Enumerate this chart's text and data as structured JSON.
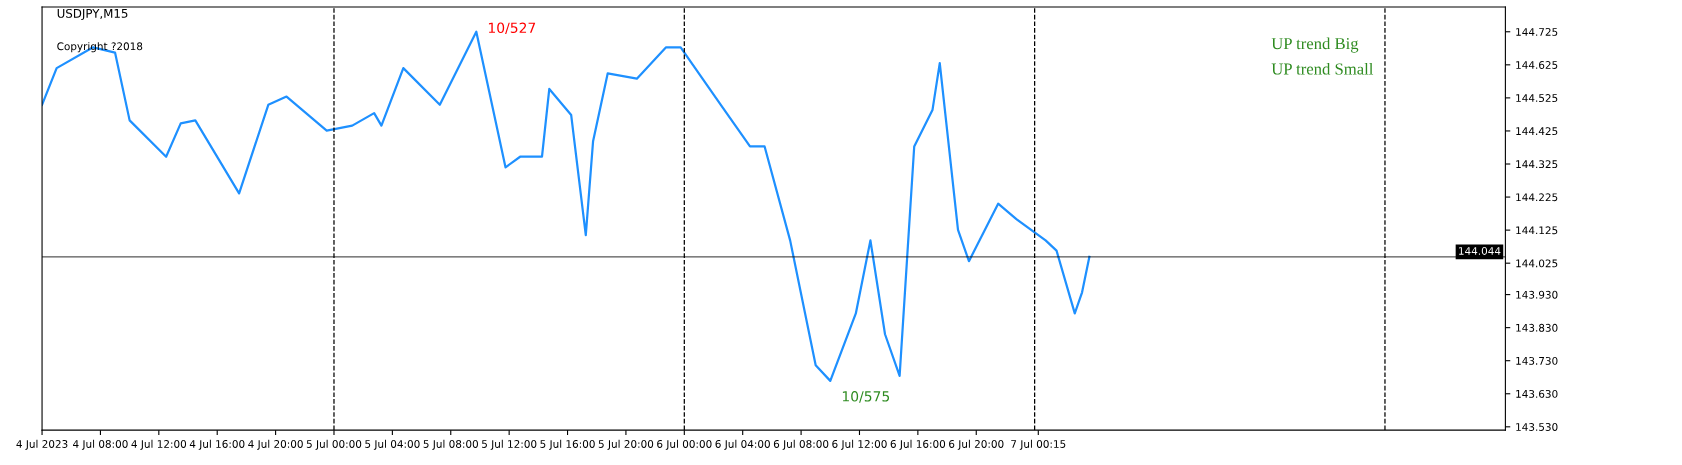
{
  "chart_data": {
    "type": "line",
    "title": "USDJPY,M15",
    "x": [
      "2023-07-04T04:00",
      "2023-07-04T05:00",
      "2023-07-04T07:30",
      "2023-07-04T09:00",
      "2023-07-04T10:00",
      "2023-07-04T12:30",
      "2023-07-04T13:30",
      "2023-07-04T14:30",
      "2023-07-04T17:30",
      "2023-07-04T19:30",
      "2023-07-04T20:45",
      "2023-07-04T23:30",
      "2023-07-05T01:15",
      "2023-07-05T02:45",
      "2023-07-05T03:15",
      "2023-07-05T04:45",
      "2023-07-05T07:15",
      "2023-07-05T09:45",
      "2023-07-05T11:45",
      "2023-07-05T12:45",
      "2023-07-05T14:15",
      "2023-07-05T14:45",
      "2023-07-05T16:15",
      "2023-07-05T17:15",
      "2023-07-05T17:45",
      "2023-07-05T18:45",
      "2023-07-05T20:45",
      "2023-07-05T22:45",
      "2023-07-05T23:45",
      "2023-07-06T02:30",
      "2023-07-06T04:30",
      "2023-07-06T05:30",
      "2023-07-06T07:15",
      "2023-07-06T09:00",
      "2023-07-06T10:00",
      "2023-07-06T11:45",
      "2023-07-06T12:45",
      "2023-07-06T13:45",
      "2023-07-06T14:45",
      "2023-07-06T15:45",
      "2023-07-06T17:00",
      "2023-07-06T17:30",
      "2023-07-06T18:45",
      "2023-07-06T19:30",
      "2023-07-06T21:30",
      "2023-07-06T22:45",
      "2023-07-07T00:45",
      "2023-07-07T01:30",
      "2023-07-07T02:45",
      "2023-07-07T03:15",
      "2023-07-07T03:45"
    ],
    "series": [
      {
        "color": "#1e90ff",
        "values": [
          144.504,
          144.615,
          144.678,
          144.662,
          144.457,
          144.347,
          144.448,
          144.457,
          144.236,
          144.504,
          144.529,
          144.426,
          144.441,
          144.479,
          144.441,
          144.615,
          144.504,
          144.725,
          144.315,
          144.347,
          144.347,
          144.552,
          144.473,
          144.11,
          144.394,
          144.599,
          144.583,
          144.678,
          144.678,
          144.504,
          144.378,
          144.378,
          144.094,
          143.716,
          143.669,
          143.873,
          144.094,
          143.81,
          143.684,
          144.378,
          144.488,
          144.63,
          144.126,
          144.031,
          144.205,
          144.158,
          144.094,
          144.063,
          143.873,
          143.937,
          144.044
        ]
      }
    ],
    "xlim": [
      "2023-07-04T04:00",
      "2023-07-08T08:15"
    ],
    "ylim": [
      143.52,
      144.8
    ],
    "xticks": [
      {
        "value": "2023-07-04T04:00",
        "label": "4 Jul 2023"
      },
      {
        "value": "2023-07-04T08:00",
        "label": "4 Jul 08:00"
      },
      {
        "value": "2023-07-04T12:00",
        "label": "4 Jul 12:00"
      },
      {
        "value": "2023-07-04T16:00",
        "label": "4 Jul 16:00"
      },
      {
        "value": "2023-07-04T20:00",
        "label": "4 Jul 20:00"
      },
      {
        "value": "2023-07-05T00:00",
        "label": "5 Jul 00:00"
      },
      {
        "value": "2023-07-05T04:00",
        "label": "5 Jul 04:00"
      },
      {
        "value": "2023-07-05T08:00",
        "label": "5 Jul 08:00"
      },
      {
        "value": "2023-07-05T12:00",
        "label": "5 Jul 12:00"
      },
      {
        "value": "2023-07-05T16:00",
        "label": "5 Jul 16:00"
      },
      {
        "value": "2023-07-05T20:00",
        "label": "5 Jul 20:00"
      },
      {
        "value": "2023-07-06T00:00",
        "label": "6 Jul 00:00"
      },
      {
        "value": "2023-07-06T04:00",
        "label": "6 Jul 04:00"
      },
      {
        "value": "2023-07-06T08:00",
        "label": "6 Jul 08:00"
      },
      {
        "value": "2023-07-06T12:00",
        "label": "6 Jul 12:00"
      },
      {
        "value": "2023-07-06T16:00",
        "label": "6 Jul 16:00"
      },
      {
        "value": "2023-07-06T20:00",
        "label": "6 Jul 20:00"
      },
      {
        "value": "2023-07-07T00:15",
        "label": "7 Jul 00:15"
      }
    ],
    "yticks": [
      {
        "value": 143.53,
        "label": "143.530"
      },
      {
        "value": 143.63,
        "label": "143.630"
      },
      {
        "value": 143.73,
        "label": "143.730"
      },
      {
        "value": 143.83,
        "label": "143.830"
      },
      {
        "value": 143.93,
        "label": "143.930"
      },
      {
        "value": 144.025,
        "label": "144.025"
      },
      {
        "value": 144.125,
        "label": "144.125"
      },
      {
        "value": 144.225,
        "label": "144.225"
      },
      {
        "value": 144.325,
        "label": "144.325"
      },
      {
        "value": 144.425,
        "label": "144.425"
      },
      {
        "value": 144.525,
        "label": "144.525"
      },
      {
        "value": 144.625,
        "label": "144.625"
      },
      {
        "value": 144.725,
        "label": "144.725"
      }
    ],
    "ref_lines": [
      {
        "axis": "x",
        "value": "2023-07-05T00:00",
        "label": null,
        "color": "#000000",
        "line_style": "dashed"
      },
      {
        "axis": "x",
        "value": "2023-07-06T00:00",
        "label": null,
        "color": "#000000",
        "line_style": "dashed"
      },
      {
        "axis": "x",
        "value": "2023-07-07T00:00",
        "label": null,
        "color": "#000000",
        "line_style": "dashed"
      },
      {
        "axis": "x",
        "value": "2023-07-08T00:00",
        "label": null,
        "color": "#000000",
        "line_style": "dashed"
      },
      {
        "axis": "y",
        "value": 144.044,
        "label": "144.044",
        "color": "#000000",
        "line_style": "solid"
      }
    ],
    "annotations": [
      "Copyright ?2018",
      "UP trend Big",
      "UP trend Small",
      {
        "text": "10/527",
        "x": "2023-07-05T09:45",
        "y": 144.725
      },
      {
        "text": "10/575",
        "x": "2023-07-06T10:00",
        "y": 143.669
      }
    ],
    "grid": false,
    "legend": false,
    "marker": "none",
    "line_style": "solid"
  }
}
